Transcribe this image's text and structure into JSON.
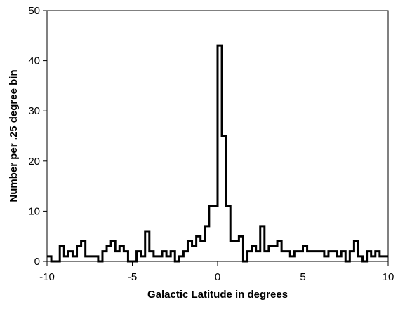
{
  "chart_data": {
    "type": "line",
    "subtype": "step-histogram",
    "title": "",
    "xlabel": "Galactic Latitude in degrees",
    "ylabel": "Number per .25 degree bin",
    "xlim": [
      -10,
      10
    ],
    "ylim": [
      0,
      50
    ],
    "xticks": [
      -10,
      -5,
      0,
      5,
      10
    ],
    "yticks": [
      0,
      10,
      20,
      30,
      40,
      50
    ],
    "xtick_labels": [
      "-10",
      "-5",
      "0",
      "5",
      "10"
    ],
    "ytick_labels": [
      "0",
      "10",
      "20",
      "30",
      "40",
      "50"
    ],
    "bin_width": 0.25,
    "grid": false,
    "legend": "none",
    "line_color": "#000000",
    "series": [
      {
        "bin_starts": [
          -10,
          -9.75,
          -9.5,
          -9.25,
          -9,
          -8.75,
          -8.5,
          -8.25,
          -8,
          -7.75,
          -7.5,
          -7.25,
          -7,
          -6.75,
          -6.5,
          -6.25,
          -6,
          -5.75,
          -5.5,
          -5.25,
          -5,
          -4.75,
          -4.5,
          -4.25,
          -4,
          -3.75,
          -3.5,
          -3.25,
          -3,
          -2.75,
          -2.5,
          -2.25,
          -2,
          -1.75,
          -1.5,
          -1.25,
          -1,
          -0.75,
          -0.5,
          -0.25,
          0,
          0.25,
          0.5,
          0.75,
          1,
          1.25,
          1.5,
          1.75,
          2,
          2.25,
          2.5,
          2.75,
          3,
          3.25,
          3.5,
          3.75,
          4,
          4.25,
          4.5,
          4.75,
          5,
          5.25,
          5.5,
          5.75,
          6,
          6.25,
          6.5,
          6.75,
          7,
          7.25,
          7.5,
          7.75,
          8,
          8.25,
          8.5,
          8.75,
          9,
          9.25,
          9.5,
          9.75
        ],
        "values": [
          1,
          0,
          0,
          3,
          1,
          2,
          1,
          3,
          4,
          1,
          1,
          1,
          0,
          2,
          3,
          4,
          2,
          3,
          2,
          0,
          0,
          2,
          1,
          6,
          2,
          1,
          1,
          2,
          1,
          2,
          0,
          1,
          2,
          4,
          3,
          5,
          4,
          7,
          11,
          11,
          43,
          25,
          11,
          4,
          4,
          5,
          0,
          2,
          3,
          2,
          7,
          2,
          3,
          3,
          4,
          2,
          2,
          1,
          2,
          2,
          3,
          2,
          2,
          2,
          2,
          1,
          2,
          2,
          1,
          2,
          0,
          2,
          4,
          1,
          0,
          2,
          1,
          2,
          1,
          1
        ]
      }
    ]
  }
}
